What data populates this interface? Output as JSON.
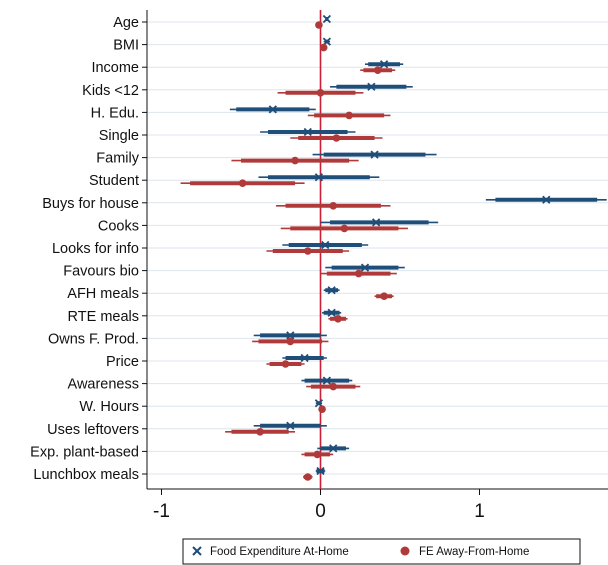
{
  "chart_data": {
    "type": "coefficient-plot",
    "orientation": "horizontal",
    "categories": [
      "Age",
      "BMI",
      "Income",
      "Kids <12",
      "H. Edu.",
      "Single",
      "Family",
      "Student",
      "Buys for house",
      "Cooks",
      "Looks for info",
      "Favours bio",
      "AFH meals",
      "RTE meals",
      "Owns F. Prod.",
      "Price",
      "Awareness",
      "W. Hours",
      "Uses leftovers",
      "Exp. plant-based",
      "Lunchbox meals"
    ],
    "xlim": [
      -1.05,
      1.82
    ],
    "xticks": [
      -1,
      0,
      1
    ],
    "xtick_labels": [
      "-1",
      "0",
      "1"
    ],
    "grid": true,
    "reference_line_x": 0,
    "legend_position": "bottom",
    "series": [
      {
        "name": "Food Expenditure At-Home",
        "marker": "x",
        "color": "#1f4e79",
        "estimates": [
          0.04,
          0.04,
          0.4,
          0.32,
          -0.3,
          -0.08,
          0.34,
          -0.01,
          1.42,
          0.35,
          0.03,
          0.28,
          0.07,
          0.07,
          -0.19,
          -0.1,
          0.04,
          -0.01,
          -0.19,
          0.08,
          0.0
        ],
        "ci95": [
          [
            0.03,
            0.05
          ],
          [
            0.02,
            0.06
          ],
          [
            0.28,
            0.52
          ],
          [
            0.06,
            0.58
          ],
          [
            -0.57,
            -0.03
          ],
          [
            -0.38,
            0.22
          ],
          [
            -0.05,
            0.73
          ],
          [
            -0.39,
            0.37
          ],
          [
            1.04,
            1.8
          ],
          [
            0.0,
            0.74
          ],
          [
            -0.24,
            0.3
          ],
          [
            0.03,
            0.53
          ],
          [
            0.02,
            0.12
          ],
          [
            0.01,
            0.13
          ],
          [
            -0.42,
            0.04
          ],
          [
            -0.24,
            0.04
          ],
          [
            -0.12,
            0.2
          ],
          [
            -0.03,
            0.01
          ],
          [
            -0.42,
            0.04
          ],
          [
            -0.02,
            0.18
          ],
          [
            -0.03,
            0.03
          ]
        ],
        "ci90": [
          [
            0.035,
            0.045
          ],
          [
            0.03,
            0.05
          ],
          [
            0.3,
            0.5
          ],
          [
            0.1,
            0.54
          ],
          [
            -0.53,
            -0.07
          ],
          [
            -0.33,
            0.17
          ],
          [
            0.02,
            0.66
          ],
          [
            -0.33,
            0.31
          ],
          [
            1.1,
            1.74
          ],
          [
            0.06,
            0.68
          ],
          [
            -0.2,
            0.26
          ],
          [
            0.07,
            0.49
          ],
          [
            0.03,
            0.11
          ],
          [
            0.02,
            0.12
          ],
          [
            -0.38,
            0.0
          ],
          [
            -0.22,
            0.02
          ],
          [
            -0.1,
            0.18
          ],
          [
            -0.025,
            0.005
          ],
          [
            -0.38,
            0.0
          ],
          [
            0.0,
            0.16
          ],
          [
            -0.025,
            0.025
          ]
        ]
      },
      {
        "name": "FE Away-From-Home",
        "marker": "o",
        "color": "#b03a3a",
        "estimates": [
          -0.01,
          0.02,
          0.36,
          0.0,
          0.18,
          0.1,
          -0.16,
          -0.49,
          0.08,
          0.15,
          -0.08,
          0.24,
          0.4,
          0.11,
          -0.19,
          -0.22,
          0.08,
          0.01,
          -0.38,
          -0.02,
          -0.08
        ],
        "ci95": [
          [
            -0.02,
            0.0
          ],
          [
            0.0,
            0.04
          ],
          [
            0.25,
            0.47
          ],
          [
            -0.27,
            0.27
          ],
          [
            -0.08,
            0.44
          ],
          [
            -0.19,
            0.39
          ],
          [
            -0.56,
            0.24
          ],
          [
            -0.88,
            -0.1
          ],
          [
            -0.28,
            0.44
          ],
          [
            -0.25,
            0.55
          ],
          [
            -0.34,
            0.18
          ],
          [
            0.0,
            0.48
          ],
          [
            0.34,
            0.46
          ],
          [
            0.05,
            0.17
          ],
          [
            -0.43,
            0.05
          ],
          [
            -0.34,
            -0.1
          ],
          [
            -0.09,
            0.25
          ],
          [
            -0.01,
            0.03
          ],
          [
            -0.6,
            -0.16
          ],
          [
            -0.12,
            0.08
          ],
          [
            -0.11,
            -0.05
          ]
        ],
        "ci90": [
          [
            -0.018,
            -0.002
          ],
          [
            0.005,
            0.035
          ],
          [
            0.27,
            0.45
          ],
          [
            -0.22,
            0.22
          ],
          [
            -0.04,
            0.4
          ],
          [
            -0.14,
            0.34
          ],
          [
            -0.5,
            0.18
          ],
          [
            -0.82,
            -0.16
          ],
          [
            -0.22,
            0.38
          ],
          [
            -0.19,
            0.49
          ],
          [
            -0.3,
            0.14
          ],
          [
            0.04,
            0.44
          ],
          [
            0.35,
            0.45
          ],
          [
            0.06,
            0.16
          ],
          [
            -0.39,
            0.01
          ],
          [
            -0.32,
            -0.12
          ],
          [
            -0.06,
            0.22
          ],
          [
            -0.005,
            0.025
          ],
          [
            -0.56,
            -0.2
          ],
          [
            -0.1,
            0.06
          ],
          [
            -0.105,
            -0.055
          ]
        ]
      }
    ]
  }
}
